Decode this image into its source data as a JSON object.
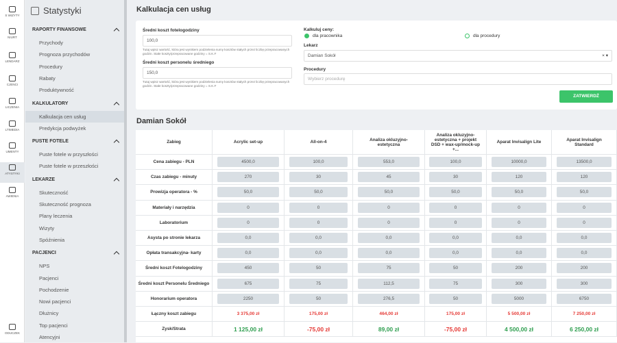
{
  "rail": [
    "S WIZYTY",
    "NIURT",
    "LENDARZ",
    "CJENCI",
    "LICZENIA",
    "LTIMEDIA",
    "UMENTY",
    "ATYSTYKI",
    "AWIENIA",
    "ODUCZEK"
  ],
  "sidebar": {
    "title": "Statystyki",
    "sections": [
      {
        "name": "RAPORTY FINANSOWE",
        "items": [
          "Przychody",
          "Prognoza przychodów",
          "Procedury",
          "Rabaty",
          "Produktywność"
        ]
      },
      {
        "name": "KALKULATORY",
        "items": [
          "Kalkulacja cen usług",
          "Predykcja podwyżek"
        ]
      },
      {
        "name": "PUSTE FOTELE",
        "items": [
          "Puste fotele w przyszłości",
          "Puste fotele w przeszłości"
        ]
      },
      {
        "name": "LEKARZE",
        "items": [
          "Skuteczność",
          "Skuteczność prognoza",
          "Plany leczenia",
          "Wizyty",
          "Spóźnienia"
        ]
      },
      {
        "name": "PACJENCI",
        "items": [
          "NPS",
          "Pacjenci",
          "Pochodzenie",
          "Nowi pacjenci",
          "Dłużnicy",
          "Top pacjenci",
          "Atencyjni"
        ]
      }
    ],
    "active": "Kalkulacja cen usług"
  },
  "page": {
    "title": "Kalkulacja cen usług"
  },
  "form": {
    "fields": [
      {
        "label": "Średni koszt fotelogodziny",
        "value": "100,0",
        "help": "Tutaj wpisz wartość, która jest wynikiem podzielenia sumy kosztów stałych przez liczbę przepracowanych godzin. Stałe koszty/przepracowane godziny = S.K.F"
      },
      {
        "label": "Średni koszt personelu średniego",
        "value": "150,0",
        "help": "Tutaj wpisz wartość, która jest wynikiem podzielenia sumy kosztów stałych przez liczbę przepracowanych godzin. Stałe koszty/przepracowane godziny = S.K.F"
      }
    ],
    "calc_label": "Kalkuluj ceny:",
    "options": [
      "dla pracownika",
      "dla procedury"
    ],
    "doctor_label": "Lekarz",
    "doctor": "Damian Sokół",
    "select_icons": "× ▾",
    "procedures_label": "Procedury",
    "procedures_placeholder": "Wybierz procedurę",
    "submit": "ZATWIERDŹ"
  },
  "table": {
    "title": "Damian Sokół",
    "columns": [
      "Zabieg",
      "Acrylic set-up",
      "All-on-4",
      "Analiza okluzyjno-estetyczna",
      "Analiza okluzyjno-estetyczna + projekt DSD + wax-up/mock-up +...",
      "Aparat Invisalign Lite",
      "Aparat Invisalign Standard"
    ],
    "rows": [
      {
        "label": "Cena zabiegu - PLN",
        "cells": [
          "4500,0",
          "100,0",
          "553,0",
          "100,0",
          "10000,0",
          "13500,0"
        ]
      },
      {
        "label": "Czas zabiegu - minuty",
        "cells": [
          "270",
          "30",
          "45",
          "30",
          "120",
          "120"
        ]
      },
      {
        "label": "Prowizja operatora - %",
        "cells": [
          "50,0",
          "50,0",
          "50,0",
          "50,0",
          "50,0",
          "50,0"
        ]
      },
      {
        "label": "Materiały i narzędzia",
        "cells": [
          "0",
          "0",
          "0",
          "0",
          "0",
          "0"
        ]
      },
      {
        "label": "Laboratorium",
        "cells": [
          "0",
          "0",
          "0",
          "0",
          "0",
          "0"
        ]
      },
      {
        "label": "Asysta po stronie lekarza",
        "cells": [
          "0,0",
          "0,0",
          "0,0",
          "0,0",
          "0,0",
          "0,0"
        ]
      },
      {
        "label": "Opłata transakcyjna- karty",
        "cells": [
          "0,0",
          "0,0",
          "0,0",
          "0,0",
          "0,0",
          "0,0"
        ]
      },
      {
        "label": "Średni koszt Fotelogodziny",
        "cells": [
          "450",
          "50",
          "75",
          "50",
          "200",
          "200"
        ]
      },
      {
        "label": "Średni koszt Personelu Średniego",
        "cells": [
          "675",
          "75",
          "112,5",
          "75",
          "300",
          "300"
        ]
      },
      {
        "label": "Honorarium operatora",
        "cells": [
          "2250",
          "50",
          "276,5",
          "50",
          "5000",
          "6750"
        ]
      },
      {
        "label": "Łączny koszt zabiegu",
        "cells": [
          "3 375,00 zł",
          "175,00 zł",
          "464,00 zł",
          "175,00 zł",
          "5 500,00 zł",
          "7 250,00 zł"
        ],
        "colors": [
          "#e53935",
          "#e53935",
          "#e53935",
          "#e53935",
          "#e53935",
          "#e53935"
        ]
      },
      {
        "label": "Zysk/Strata",
        "cells": [
          "1 125,00 zł",
          "-75,00 zł",
          "89,00 zł",
          "-75,00 zł",
          "4 500,00 zł",
          "6 250,00 zł"
        ],
        "colors": [
          "#2e9e4f",
          "#e53935",
          "#2e9e4f",
          "#e53935",
          "#2e9e4f",
          "#2e9e4f"
        ]
      }
    ]
  }
}
